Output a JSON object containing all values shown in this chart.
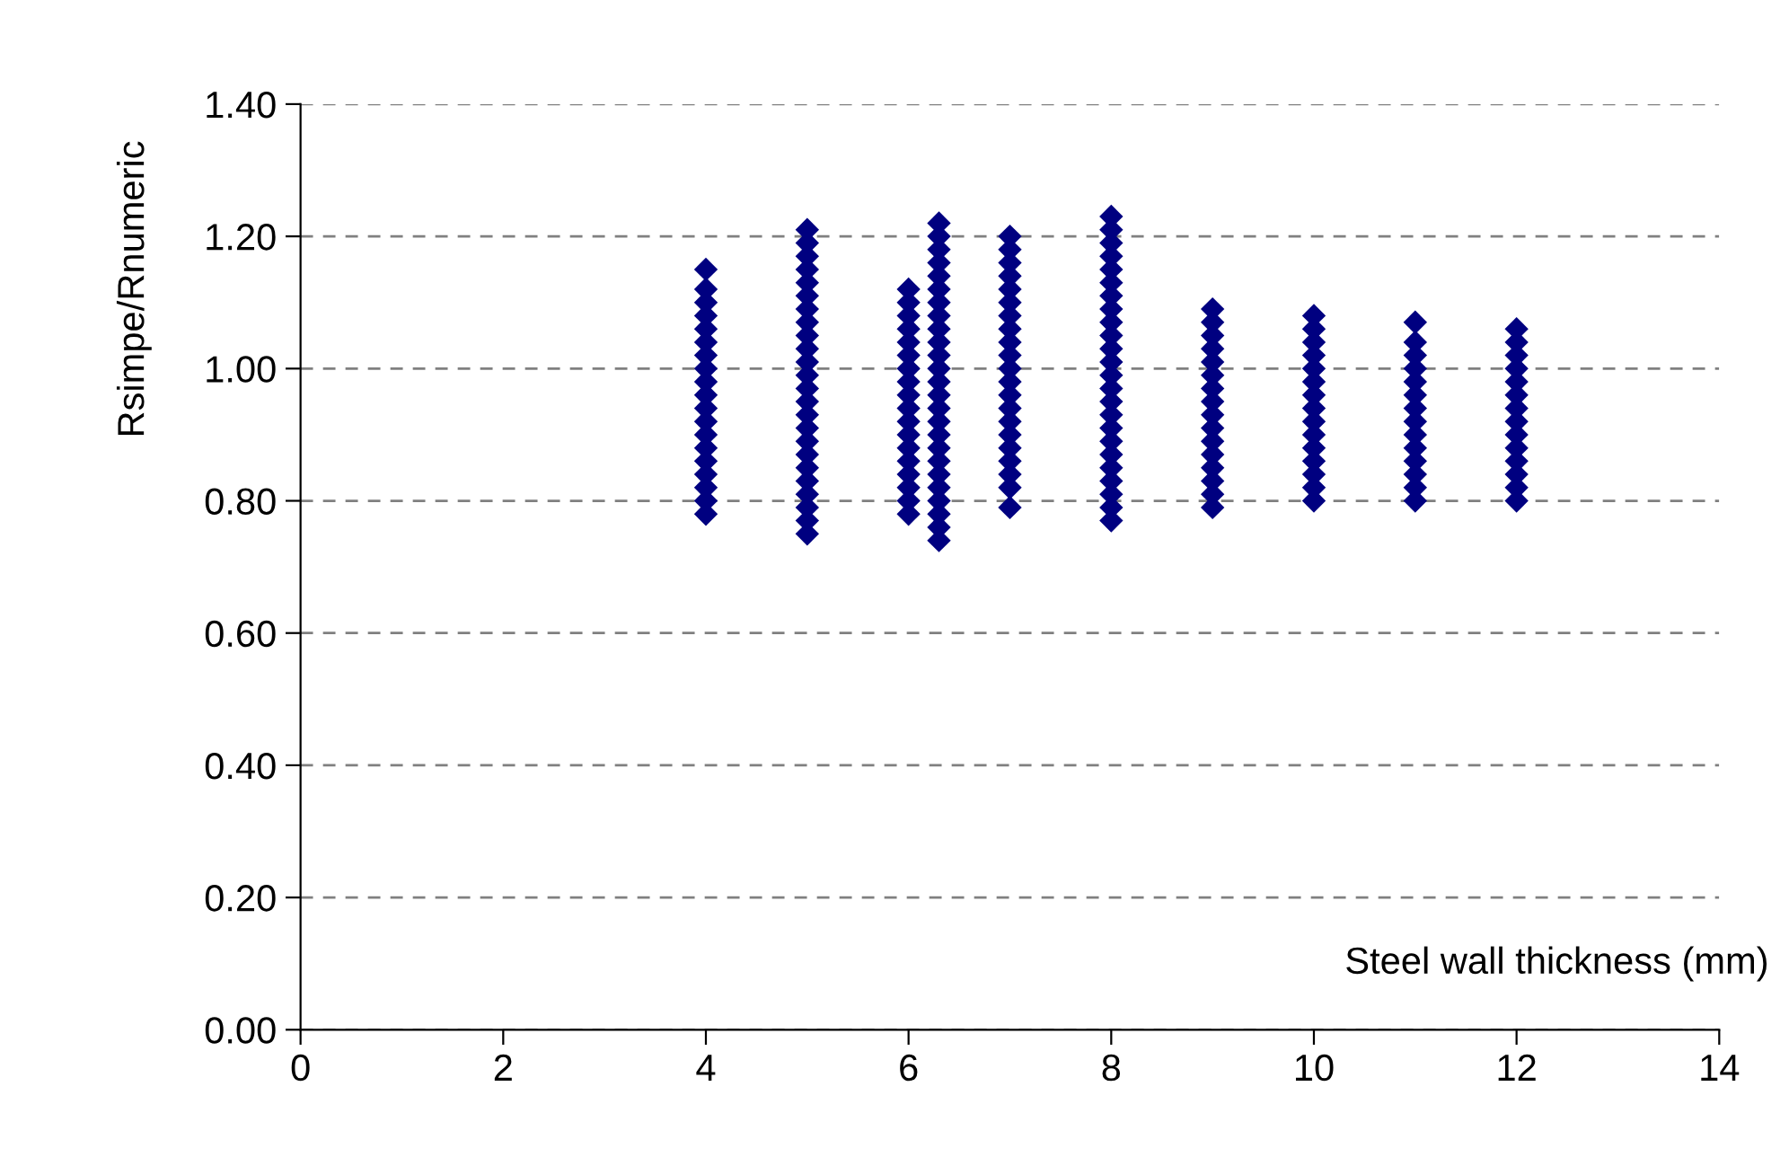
{
  "chart_data": {
    "type": "scatter",
    "xlabel": "Steel wall thickness (mm)",
    "ylabel": "Rsimpe/Rnumeric",
    "xlim": [
      0,
      14
    ],
    "xticks": [
      0,
      2,
      4,
      6,
      8,
      10,
      12,
      14
    ],
    "ylim": [
      0,
      1.4
    ],
    "yticks": [
      {
        "value": 0,
        "label": "0.00"
      },
      {
        "value": 0.2,
        "label": "0.20"
      },
      {
        "value": 0.4,
        "label": "0.40"
      },
      {
        "value": 0.6,
        "label": "0.60"
      },
      {
        "value": 0.8,
        "label": "0.80"
      },
      {
        "value": 1.0,
        "label": "1.00"
      },
      {
        "value": 1.2,
        "label": "1.20"
      },
      {
        "value": 1.4,
        "label": "1.40"
      }
    ],
    "grid": "y",
    "marker": "diamond",
    "series": [
      {
        "color": "#000080",
        "x": [
          4,
          4,
          4,
          4,
          4,
          4,
          4,
          4,
          4,
          4,
          4,
          4,
          4,
          4,
          4,
          4,
          4,
          4,
          4
        ],
        "values": [
          0.78,
          0.8,
          0.82,
          0.84,
          0.86,
          0.88,
          0.9,
          0.92,
          0.94,
          0.96,
          0.98,
          1.0,
          1.02,
          1.04,
          1.06,
          1.08,
          1.1,
          1.12,
          1.15
        ]
      },
      {
        "color": "#000080",
        "x": [
          5,
          5,
          5,
          5,
          5,
          5,
          5,
          5,
          5,
          5,
          5,
          5,
          5,
          5,
          5,
          5,
          5,
          5,
          5,
          5,
          5,
          5,
          5,
          5
        ],
        "values": [
          0.75,
          0.77,
          0.79,
          0.81,
          0.83,
          0.85,
          0.87,
          0.89,
          0.91,
          0.93,
          0.95,
          0.97,
          0.99,
          1.01,
          1.03,
          1.05,
          1.07,
          1.09,
          1.11,
          1.13,
          1.15,
          1.17,
          1.19,
          1.21
        ]
      },
      {
        "color": "#000080",
        "x": [
          6,
          6,
          6,
          6,
          6,
          6,
          6,
          6,
          6,
          6,
          6,
          6,
          6,
          6,
          6,
          6,
          6,
          6
        ],
        "values": [
          0.78,
          0.8,
          0.82,
          0.84,
          0.86,
          0.88,
          0.9,
          0.92,
          0.94,
          0.96,
          0.98,
          1.0,
          1.02,
          1.04,
          1.06,
          1.08,
          1.1,
          1.12
        ]
      },
      {
        "color": "#000080",
        "x": [
          6.3,
          6.3,
          6.3,
          6.3,
          6.3,
          6.3,
          6.3,
          6.3,
          6.3,
          6.3,
          6.3,
          6.3,
          6.3,
          6.3,
          6.3,
          6.3,
          6.3,
          6.3,
          6.3,
          6.3,
          6.3,
          6.3,
          6.3,
          6.3,
          6.3
        ],
        "values": [
          0.74,
          0.76,
          0.78,
          0.8,
          0.82,
          0.84,
          0.86,
          0.88,
          0.9,
          0.92,
          0.94,
          0.96,
          0.98,
          1.0,
          1.02,
          1.04,
          1.06,
          1.08,
          1.1,
          1.12,
          1.14,
          1.16,
          1.18,
          1.2,
          1.22
        ]
      },
      {
        "color": "#000080",
        "x": [
          7,
          7,
          7,
          7,
          7,
          7,
          7,
          7,
          7,
          7,
          7,
          7,
          7,
          7,
          7,
          7,
          7,
          7,
          7,
          7,
          7
        ],
        "values": [
          0.79,
          0.82,
          0.84,
          0.86,
          0.88,
          0.9,
          0.92,
          0.94,
          0.96,
          0.98,
          1.0,
          1.02,
          1.04,
          1.06,
          1.08,
          1.1,
          1.12,
          1.14,
          1.16,
          1.18,
          1.2
        ]
      },
      {
        "color": "#000080",
        "x": [
          8,
          8,
          8,
          8,
          8,
          8,
          8,
          8,
          8,
          8,
          8,
          8,
          8,
          8,
          8,
          8,
          8,
          8,
          8,
          8,
          8,
          8,
          8,
          8
        ],
        "values": [
          0.77,
          0.79,
          0.81,
          0.83,
          0.85,
          0.87,
          0.89,
          0.91,
          0.93,
          0.95,
          0.97,
          0.99,
          1.01,
          1.03,
          1.05,
          1.07,
          1.09,
          1.11,
          1.13,
          1.15,
          1.17,
          1.19,
          1.21,
          1.23
        ]
      },
      {
        "color": "#000080",
        "x": [
          9,
          9,
          9,
          9,
          9,
          9,
          9,
          9,
          9,
          9,
          9,
          9,
          9,
          9,
          9,
          9
        ],
        "values": [
          0.79,
          0.81,
          0.83,
          0.85,
          0.87,
          0.89,
          0.91,
          0.93,
          0.95,
          0.97,
          0.99,
          1.01,
          1.03,
          1.05,
          1.07,
          1.09
        ]
      },
      {
        "color": "#000080",
        "x": [
          10,
          10,
          10,
          10,
          10,
          10,
          10,
          10,
          10,
          10,
          10,
          10,
          10,
          10,
          10
        ],
        "values": [
          0.8,
          0.82,
          0.84,
          0.86,
          0.88,
          0.9,
          0.92,
          0.94,
          0.96,
          0.98,
          1.0,
          1.02,
          1.04,
          1.06,
          1.08
        ]
      },
      {
        "color": "#000080",
        "x": [
          11,
          11,
          11,
          11,
          11,
          11,
          11,
          11,
          11,
          11,
          11,
          11,
          11,
          11
        ],
        "values": [
          0.8,
          0.82,
          0.84,
          0.86,
          0.88,
          0.9,
          0.92,
          0.94,
          0.96,
          0.98,
          1.0,
          1.02,
          1.04,
          1.07
        ]
      },
      {
        "color": "#000080",
        "x": [
          12,
          12,
          12,
          12,
          12,
          12,
          12,
          12,
          12,
          12,
          12,
          12,
          12,
          12
        ],
        "values": [
          0.8,
          0.82,
          0.84,
          0.86,
          0.88,
          0.9,
          0.92,
          0.94,
          0.96,
          0.98,
          1.0,
          1.02,
          1.04,
          1.06
        ]
      }
    ]
  }
}
